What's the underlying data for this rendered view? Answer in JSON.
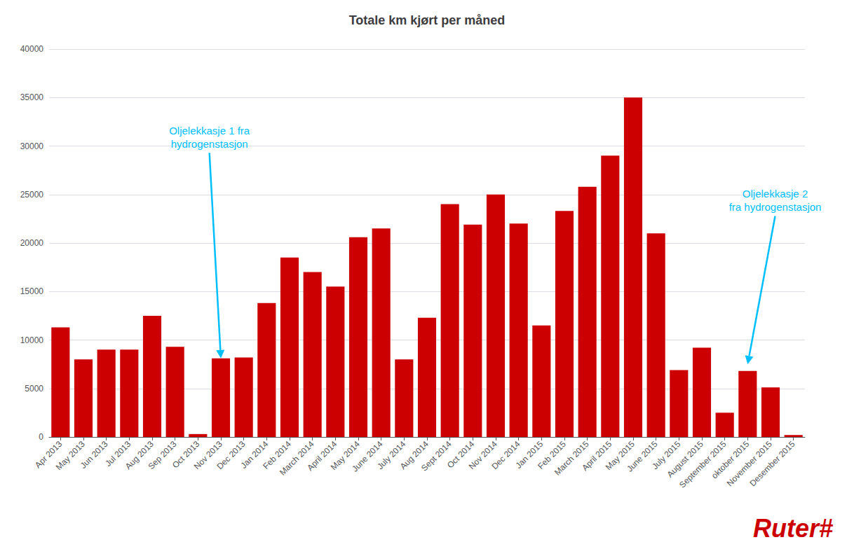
{
  "chart_data": {
    "type": "bar",
    "title": "Totale km kjørt per måned",
    "categories": [
      "Apr 2013",
      "May 2013",
      "Jun 2013",
      "Jul 2013",
      "Aug 2013",
      "Sep 2013",
      "Oct 2013",
      "Nov 2013",
      "Dec 2013",
      "Jan 2014",
      "Feb 2014",
      "March 2014",
      "April 2014",
      "May 2014",
      "June 2014",
      "July 2014",
      "Aug 2014",
      "Sept 2014",
      "Oct 2014",
      "Nov 2014",
      "Dec 2014",
      "Jan 2015",
      "Feb 2015",
      "March 2015",
      "April 2015",
      "May 2015",
      "June 2015",
      "July 2015",
      "August 2015",
      "September 2015",
      "oktober 2015",
      "November 2015",
      "Desember 2015"
    ],
    "values": [
      11300,
      8000,
      9000,
      9000,
      12500,
      9300,
      300,
      8100,
      8200,
      13800,
      18500,
      17000,
      15500,
      20600,
      21500,
      8000,
      12300,
      24000,
      21900,
      25000,
      22000,
      11500,
      23300,
      25800,
      29000,
      35000,
      21000,
      6900,
      9200,
      2500,
      6800,
      5100,
      200
    ],
    "color": "#CC0000",
    "ylim": [
      0,
      40000
    ],
    "yticks": [
      0,
      5000,
      10000,
      15000,
      20000,
      25000,
      30000,
      35000,
      40000
    ],
    "grid": true,
    "annotations": [
      {
        "text": "Oljelekkasje 1 fra\nhydrogenstasjon",
        "x": "Nov 2013",
        "y": 8100,
        "text_y": 29500,
        "color": "#00BFFF"
      },
      {
        "text": "Oljelekkasje 2\nfra hydrogenstasjon",
        "x": "oktober 2015",
        "y": 7500,
        "text_y": 23000,
        "color": "#00BFFF"
      }
    ],
    "logo": {
      "text": "Ruter#",
      "color": "#CC0000"
    }
  }
}
